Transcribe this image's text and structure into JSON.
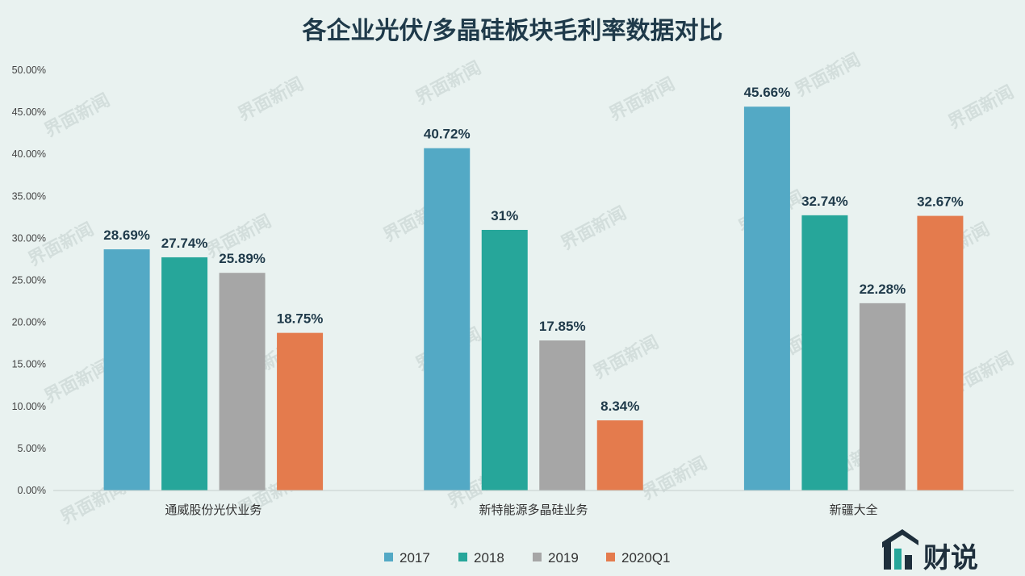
{
  "chart_data": {
    "type": "bar",
    "title": "各企业光伏/多晶硅板块毛利率数据对比",
    "categories": [
      "通威股份光伏业务",
      "新特能源多晶硅业务",
      "新疆大全"
    ],
    "series": [
      {
        "name": "2017",
        "color": "#53a9c5",
        "values": [
          28.69,
          40.72,
          45.66
        ],
        "labels": [
          "28.69%",
          "40.72%",
          "45.66%"
        ]
      },
      {
        "name": "2018",
        "color": "#26a69a",
        "values": [
          27.74,
          31,
          32.74
        ],
        "labels": [
          "27.74%",
          "31%",
          "32.74%"
        ]
      },
      {
        "name": "2019",
        "color": "#a6a6a6",
        "values": [
          25.89,
          17.85,
          22.28
        ],
        "labels": [
          "25.89%",
          "17.85%",
          "22.28%"
        ]
      },
      {
        "name": "2020Q1",
        "color": "#e47b4d",
        "values": [
          18.75,
          8.34,
          32.67
        ],
        "labels": [
          "18.75%",
          "8.34%",
          "32.67%"
        ]
      }
    ],
    "ylim": [
      0,
      50
    ],
    "yticks": [
      0,
      5,
      10,
      15,
      20,
      25,
      30,
      35,
      40,
      45,
      50
    ],
    "ytick_labels": [
      "0.00%",
      "5.00%",
      "10.00%",
      "15.00%",
      "20.00%",
      "25.00%",
      "30.00%",
      "35.00%",
      "40.00%",
      "45.00%",
      "50.00%"
    ],
    "grid": false,
    "legend_position": "bottom-center"
  },
  "watermark": {
    "text": "界面新闻"
  },
  "brand": {
    "logo_text": "财说",
    "logo_color": "#1e2f3c",
    "logo_accent": "#26a69a"
  }
}
